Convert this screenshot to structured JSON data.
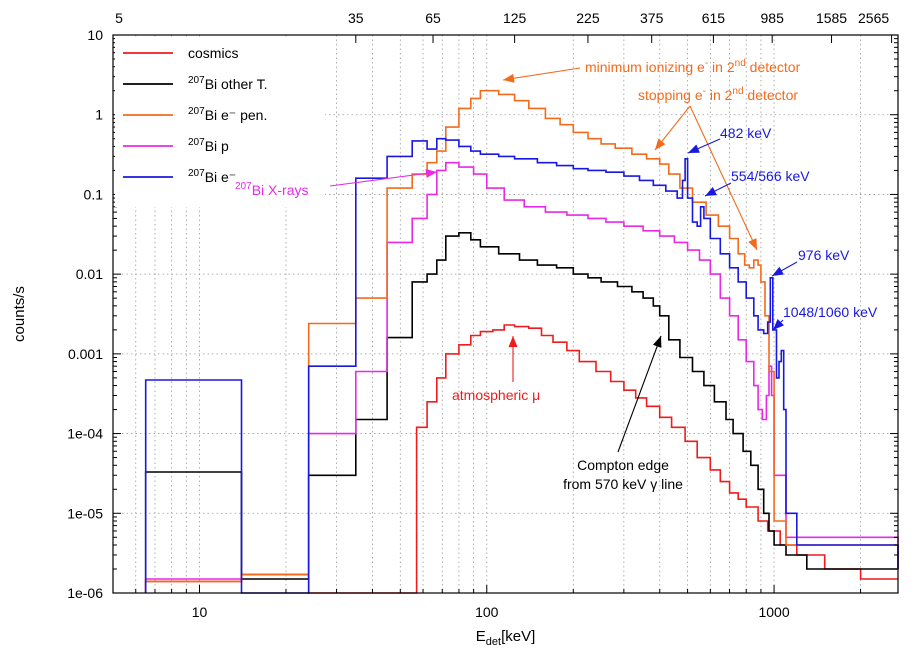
{
  "chart_data": {
    "type": "line",
    "xlabel": "E",
    "xlabel_sub": "det",
    "xlabel_unit": "[keV]",
    "ylabel": "counts/s",
    "x_scale": "log",
    "y_scale": "log",
    "xlim": [
      5,
      2700
    ],
    "ylim": [
      1e-06,
      10
    ],
    "grid": true,
    "legend_placement": "top-left",
    "x_ticks": [
      {
        "value": 10,
        "label": "10"
      },
      {
        "value": 100,
        "label": "100"
      },
      {
        "value": 1000,
        "label": "1000"
      }
    ],
    "x2_ticks": [
      {
        "value": 5,
        "label": "5"
      },
      {
        "value": 35,
        "label": "35"
      },
      {
        "value": 65,
        "label": "65"
      },
      {
        "value": 125,
        "label": "125"
      },
      {
        "value": 225,
        "label": "225"
      },
      {
        "value": 375,
        "label": "375"
      },
      {
        "value": 615,
        "label": "615"
      },
      {
        "value": 985,
        "label": "985"
      },
      {
        "value": 1585,
        "label": "1585"
      },
      {
        "value": 2565,
        "label": "2565"
      }
    ],
    "y_ticks": [
      {
        "value": 10,
        "label": "10"
      },
      {
        "value": 1,
        "label": "1"
      },
      {
        "value": 0.1,
        "label": "0.1"
      },
      {
        "value": 0.01,
        "label": "0.01"
      },
      {
        "value": 0.001,
        "label": "0.001"
      },
      {
        "value": 0.0001,
        "label": "1e-04"
      },
      {
        "value": 1e-05,
        "label": "1e-05"
      },
      {
        "value": 1e-06,
        "label": "1e-06"
      }
    ],
    "series": [
      {
        "name": "cosmics",
        "color": "#ee1c1c",
        "mode": "step",
        "points": [
          [
            6.5,
            1.4e-06
          ],
          [
            14,
            1.7e-06
          ],
          [
            24,
            1e-06
          ],
          [
            35,
            1e-06
          ],
          [
            45,
            1e-06
          ],
          [
            55,
            1e-06
          ],
          [
            57,
            0.00012
          ],
          [
            62,
            0.00025
          ],
          [
            67,
            0.0005
          ],
          [
            72,
            0.001
          ],
          [
            80,
            0.0013
          ],
          [
            88,
            0.0017
          ],
          [
            95,
            0.0019
          ],
          [
            105,
            0.002
          ],
          [
            115,
            0.0023
          ],
          [
            125,
            0.0022
          ],
          [
            140,
            0.0021
          ],
          [
            155,
            0.0017
          ],
          [
            170,
            0.0014
          ],
          [
            190,
            0.0011
          ],
          [
            210,
            0.0008
          ],
          [
            240,
            0.0006
          ],
          [
            270,
            0.00045
          ],
          [
            300,
            0.00035
          ],
          [
            330,
            0.00028
          ],
          [
            360,
            0.00022
          ],
          [
            400,
            0.00016
          ],
          [
            440,
            0.00012
          ],
          [
            490,
            8e-05
          ],
          [
            540,
            5e-05
          ],
          [
            600,
            3.5e-05
          ],
          [
            650,
            2.5e-05
          ],
          [
            700,
            1.8e-05
          ],
          [
            750,
            1.5e-05
          ],
          [
            800,
            1.2e-05
          ],
          [
            880,
            8e-06
          ],
          [
            950,
            6e-06
          ],
          [
            1050,
            4e-06
          ],
          [
            1200,
            3e-06
          ],
          [
            1500,
            2e-06
          ],
          [
            2000,
            1.5e-06
          ],
          [
            2700,
            1.5e-06
          ]
        ]
      },
      {
        "name": "Bi other T.",
        "sup": "207",
        "color": "#000000",
        "mode": "step",
        "points": [
          [
            6.5,
            3.3e-05
          ],
          [
            14,
            1.5e-06
          ],
          [
            24,
            3e-05
          ],
          [
            35,
            0.00015
          ],
          [
            45,
            0.0016
          ],
          [
            55,
            0.008
          ],
          [
            62,
            0.01
          ],
          [
            67,
            0.015
          ],
          [
            72,
            0.03
          ],
          [
            80,
            0.033
          ],
          [
            88,
            0.027
          ],
          [
            95,
            0.022
          ],
          [
            110,
            0.018
          ],
          [
            130,
            0.015
          ],
          [
            150,
            0.013
          ],
          [
            175,
            0.012
          ],
          [
            200,
            0.01
          ],
          [
            225,
            0.009
          ],
          [
            250,
            0.008
          ],
          [
            285,
            0.007
          ],
          [
            320,
            0.006
          ],
          [
            350,
            0.005
          ],
          [
            380,
            0.004
          ],
          [
            400,
            0.003
          ],
          [
            430,
            0.0015
          ],
          [
            470,
            0.0009
          ],
          [
            520,
            0.0006
          ],
          [
            570,
            0.0004
          ],
          [
            620,
            0.00025
          ],
          [
            680,
            0.00015
          ],
          [
            720,
            0.0001
          ],
          [
            780,
            6e-05
          ],
          [
            830,
            4e-05
          ],
          [
            880,
            2e-05
          ],
          [
            920,
            1e-05
          ],
          [
            960,
            6e-06
          ],
          [
            1000,
            4e-06
          ],
          [
            1100,
            3e-06
          ],
          [
            1300,
            2e-06
          ],
          [
            2700,
            2e-06
          ]
        ]
      },
      {
        "name": "Bi e⁻ pen.",
        "sup": "207",
        "color": "#f26b1d",
        "mode": "step",
        "points": [
          [
            6.5,
            1.4e-06
          ],
          [
            14,
            1.7e-06
          ],
          [
            24,
            0.0024
          ],
          [
            35,
            0.005
          ],
          [
            45,
            0.12
          ],
          [
            55,
            0.18
          ],
          [
            62,
            0.25
          ],
          [
            67,
            0.35
          ],
          [
            72,
            0.7
          ],
          [
            80,
            1.2
          ],
          [
            88,
            1.6
          ],
          [
            95,
            2
          ],
          [
            110,
            1.8
          ],
          [
            125,
            1.5
          ],
          [
            140,
            1.2
          ],
          [
            160,
            0.9
          ],
          [
            180,
            0.75
          ],
          [
            200,
            0.6
          ],
          [
            225,
            0.5
          ],
          [
            250,
            0.43
          ],
          [
            280,
            0.38
          ],
          [
            320,
            0.32
          ],
          [
            360,
            0.28
          ],
          [
            400,
            0.24
          ],
          [
            430,
            0.18
          ],
          [
            470,
            0.12
          ],
          [
            520,
            0.08
          ],
          [
            580,
            0.055
          ],
          [
            640,
            0.04
          ],
          [
            700,
            0.028
          ],
          [
            750,
            0.018
          ],
          [
            790,
            0.013
          ],
          [
            820,
            0.012
          ],
          [
            850,
            0.015
          ],
          [
            880,
            0.013
          ],
          [
            900,
            0.008
          ],
          [
            930,
            0.003
          ],
          [
            960,
            0.0006
          ],
          [
            1000,
            8e-06
          ],
          [
            1100,
            4e-06
          ],
          [
            2700,
            2e-06
          ]
        ]
      },
      {
        "name": "Bi p",
        "sup": "207",
        "color": "#e829e8",
        "mode": "step",
        "points": [
          [
            6.5,
            1.5e-06
          ],
          [
            14,
            1.7e-06
          ],
          [
            24,
            0.0001
          ],
          [
            35,
            0.0006
          ],
          [
            45,
            0.025
          ],
          [
            55,
            0.05
          ],
          [
            62,
            0.1
          ],
          [
            67,
            0.2
          ],
          [
            72,
            0.25
          ],
          [
            80,
            0.22
          ],
          [
            90,
            0.18
          ],
          [
            100,
            0.12
          ],
          [
            115,
            0.085
          ],
          [
            135,
            0.07
          ],
          [
            160,
            0.06
          ],
          [
            190,
            0.055
          ],
          [
            225,
            0.05
          ],
          [
            260,
            0.045
          ],
          [
            300,
            0.04
          ],
          [
            350,
            0.035
          ],
          [
            400,
            0.03
          ],
          [
            450,
            0.025
          ],
          [
            500,
            0.02
          ],
          [
            550,
            0.015
          ],
          [
            600,
            0.01
          ],
          [
            650,
            0.005
          ],
          [
            700,
            0.003
          ],
          [
            750,
            0.0015
          ],
          [
            800,
            0.0008
          ],
          [
            850,
            0.0004
          ],
          [
            880,
            0.0002
          ],
          [
            910,
            0.00015
          ],
          [
            940,
            0.0003
          ],
          [
            960,
            0.0007
          ],
          [
            980,
            0.0003
          ],
          [
            1000,
            3e-05
          ],
          [
            1100,
            5e-06
          ],
          [
            1400,
            5e-06
          ],
          [
            2700,
            2e-06
          ]
        ]
      },
      {
        "name": "Bi e⁻",
        "sup": "207",
        "color": "#1818e0",
        "mode": "step",
        "points": [
          [
            6.5,
            0.00047
          ],
          [
            14,
            1e-06
          ],
          [
            24,
            0.0007
          ],
          [
            35,
            0.16
          ],
          [
            45,
            0.3
          ],
          [
            55,
            0.47
          ],
          [
            62,
            0.37
          ],
          [
            67,
            0.5
          ],
          [
            72,
            0.48
          ],
          [
            80,
            0.4
          ],
          [
            88,
            0.35
          ],
          [
            95,
            0.32
          ],
          [
            110,
            0.3
          ],
          [
            125,
            0.28
          ],
          [
            150,
            0.25
          ],
          [
            175,
            0.23
          ],
          [
            200,
            0.21
          ],
          [
            225,
            0.2
          ],
          [
            260,
            0.19
          ],
          [
            300,
            0.17
          ],
          [
            340,
            0.15
          ],
          [
            380,
            0.13
          ],
          [
            420,
            0.11
          ],
          [
            460,
            0.09
          ],
          [
            480,
            0.15
          ],
          [
            490,
            0.28
          ],
          [
            500,
            0.09
          ],
          [
            520,
            0.045
          ],
          [
            540,
            0.04
          ],
          [
            555,
            0.07
          ],
          [
            570,
            0.05
          ],
          [
            600,
            0.028
          ],
          [
            650,
            0.018
          ],
          [
            700,
            0.012
          ],
          [
            750,
            0.008
          ],
          [
            800,
            0.005
          ],
          [
            850,
            0.003
          ],
          [
            880,
            0.002
          ],
          [
            920,
            0.0018
          ],
          [
            950,
            0.0025
          ],
          [
            970,
            0.009
          ],
          [
            990,
            0.002
          ],
          [
            1020,
            0.0005
          ],
          [
            1040,
            0.0008
          ],
          [
            1060,
            0.0011
          ],
          [
            1080,
            0.0002
          ],
          [
            1100,
            1e-05
          ],
          [
            1200,
            4e-06
          ],
          [
            2700,
            2e-06
          ]
        ]
      }
    ],
    "annotations": [
      {
        "text": "minimum ionizing e",
        "sup": "-",
        "tail": " in 2",
        "sup2": "nd",
        "tail2": " detector",
        "color": "#f26b1d"
      },
      {
        "text": "stopping e",
        "sup": "-",
        "tail": " in 2",
        "sup2": "nd",
        "tail2": " detector",
        "color": "#f26b1d"
      },
      {
        "text": "482 keV",
        "color": "#1818e0"
      },
      {
        "text": "554/566 keV",
        "color": "#1818e0"
      },
      {
        "text": "976 keV",
        "color": "#1818e0"
      },
      {
        "text": "1048/1060 keV",
        "color": "#1818e0"
      },
      {
        "text": "X-rays",
        "pre_sup": "207",
        "pre_text": "Bi",
        "color": "#e829e8"
      },
      {
        "text": "atmospheric μ",
        "color": "#ee1c1c"
      },
      {
        "text": "Compton edge",
        "color": "#000000"
      },
      {
        "text": "from 570 keV γ line",
        "color": "#000000"
      }
    ]
  }
}
